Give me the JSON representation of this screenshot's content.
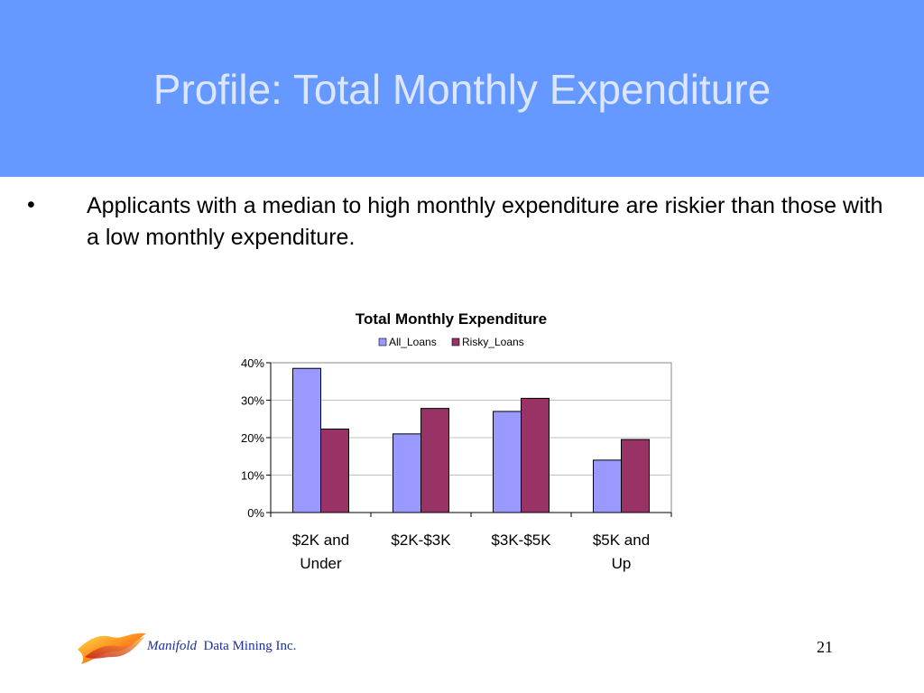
{
  "slide": {
    "title": "Profile: Total Monthly Expenditure",
    "bullet_marker": "•",
    "bullet_text": "Applicants with a median to high monthly expenditure are riskier than those with a low monthly expenditure.",
    "page_number": "21"
  },
  "footer": {
    "brand_italic": "Manifold",
    "brand_rest": "Data Mining Inc.",
    "logo_icon": "manifold-logo-icon"
  },
  "colors": {
    "header": "#6699ff",
    "series_all": "#9999ff",
    "series_risky": "#993366"
  },
  "chart_data": {
    "type": "bar",
    "title": "Total Monthly Expenditure",
    "categories": [
      [
        "$2K and",
        "Under"
      ],
      [
        "$2K-$3K"
      ],
      [
        "$3K-$5K"
      ],
      [
        "$5K and",
        "Up"
      ]
    ],
    "series": [
      {
        "name": "All_Loans",
        "values": [
          38.5,
          21,
          27,
          14
        ]
      },
      {
        "name": "Risky_Loans",
        "values": [
          22.3,
          27.8,
          30.5,
          19.5
        ]
      }
    ],
    "ylim": [
      0,
      40
    ],
    "yticks": [
      "0%",
      "10%",
      "20%",
      "30%",
      "40%"
    ],
    "grid": true,
    "legend": "top"
  }
}
